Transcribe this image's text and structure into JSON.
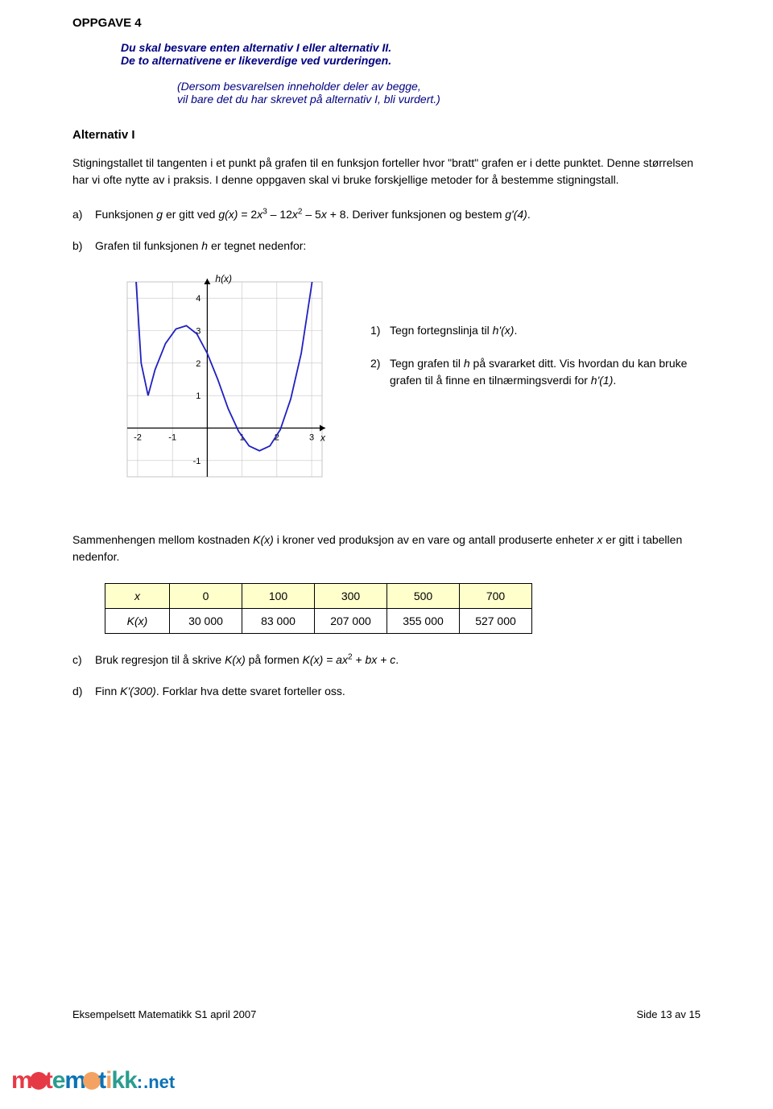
{
  "header": {
    "title": "OPPGAVE 4",
    "instruction_line1": "Du skal besvare enten alternativ I eller alternativ II.",
    "instruction_line2": "De to alternativene er likeverdige ved vurderingen.",
    "subnote_line1": "(Dersom besvarelsen inneholder deler av begge,",
    "subnote_line2": "vil bare det du har skrevet på alternativ I, bli vurdert.)"
  },
  "alt_heading": "Alternativ I",
  "intro_para": "Stigningstallet til tangenten i et punkt på grafen til en funksjon forteller hvor \"bratt\" grafen er i dette punktet. Denne størrelsen har vi ofte nytte av i praksis. I denne oppgaven skal vi bruke forskjellige metoder for å bestemme stigningstall.",
  "task_a": {
    "label": "a)",
    "pre": "Funksjonen ",
    "func": "g",
    "mid1": " er gitt ved ",
    "expr_lhs": "g(x)",
    "eq": " = 2",
    "expr_rest_1": "x",
    "exp1": "3",
    "dash1": " – 12",
    "x2": "x",
    "exp2": "2",
    "dash2": " – 5",
    "x3": "x",
    "plus": " + 8. Deriver funksjonen og bestem ",
    "gprime": "g'(4)",
    "end": "."
  },
  "task_b": {
    "label": "b)",
    "text": "Grafen til funksjonen ",
    "h": "h",
    "rest": " er tegnet nedenfor:"
  },
  "graph": {
    "axis_label_y": "h(x)",
    "axis_label_x": "x",
    "xlim": [
      -2.3,
      3.3
    ],
    "ylim": [
      -1.5,
      4.5
    ],
    "xticks": [
      -2,
      -1,
      1,
      2,
      3
    ],
    "yticks": [
      -1,
      1,
      2,
      3,
      4
    ],
    "curve_color": "#2020c0",
    "grid_color": "#c4c4c4",
    "axis_color": "#000000",
    "background": "#ffffff",
    "curve_points": [
      [
        -2.05,
        4.6
      ],
      [
        -1.9,
        2.0
      ],
      [
        -1.7,
        1.0
      ],
      [
        -1.5,
        1.8
      ],
      [
        -1.2,
        2.6
      ],
      [
        -0.9,
        3.05
      ],
      [
        -0.6,
        3.15
      ],
      [
        -0.3,
        2.9
      ],
      [
        0.0,
        2.3
      ],
      [
        0.3,
        1.5
      ],
      [
        0.6,
        0.6
      ],
      [
        0.9,
        -0.1
      ],
      [
        1.2,
        -0.55
      ],
      [
        1.5,
        -0.7
      ],
      [
        1.8,
        -0.55
      ],
      [
        2.1,
        -0.05
      ],
      [
        2.4,
        0.9
      ],
      [
        2.7,
        2.3
      ],
      [
        3.0,
        4.4
      ],
      [
        3.1,
        5.2
      ]
    ]
  },
  "graph_notes": {
    "n1": {
      "label": "1)",
      "pre": "Tegn fortegnslinja til ",
      "expr": "h'(x)",
      "end": "."
    },
    "n2": {
      "label": "2)",
      "pre": "Tegn grafen til ",
      "h": "h",
      "mid": " på svararket ditt. Vis hvordan du kan bruke grafen til å finne en tilnærmingsverdi for ",
      "expr": "h'(1)",
      "end": "."
    }
  },
  "cost_intro_1": "Sammenhengen mellom kostnaden ",
  "cost_K": "K(x)",
  "cost_intro_2": " i kroner ved produksjon av en vare og antall produserte enheter ",
  "cost_x": "x",
  "cost_intro_3": " er gitt i tabellen nedenfor.",
  "table": {
    "row1_label": "x",
    "row2_label": "K(x)",
    "columns": [
      "0",
      "100",
      "300",
      "500",
      "700"
    ],
    "values": [
      "30 000",
      "83 000",
      "207 000",
      "355 000",
      "527 000"
    ],
    "header_bg": "#ffffcc",
    "border_color": "#000000"
  },
  "task_c": {
    "label": "c)",
    "pre": "Bruk regresjon til å skrive ",
    "k1": "K(x)",
    "mid": " på formen ",
    "form_pre": "K(x) = ax",
    "exp": "2",
    "form_rest": " + bx + c",
    "end": "."
  },
  "task_d": {
    "label": "d)",
    "pre": "Finn ",
    "expr": "K'(300)",
    "rest": ". Forklar hva dette svaret forteller oss."
  },
  "footer": {
    "left": "Eksempelsett Matematikk S1 april 2007",
    "right": "Side 13 av 15"
  },
  "logo": {
    "text": "matematikk",
    "suffix": ".net"
  }
}
